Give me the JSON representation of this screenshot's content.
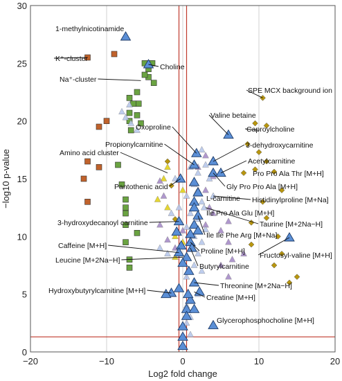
{
  "chart_data": {
    "type": "scatter",
    "title": "",
    "xlabel": "Log2 fold change",
    "ylabel": "−log10 p-value",
    "xlim": [
      -20,
      20
    ],
    "ylim": [
      0,
      30
    ],
    "xticks": [
      "−20",
      "−10",
      "0",
      "10",
      "20"
    ],
    "yticks": [
      "0",
      "5",
      "10",
      "15",
      "20",
      "25",
      "30"
    ],
    "grid": "vertical",
    "colors": {
      "squares": "#6aa341",
      "orange_squares": "#c0622b",
      "diamonds": "#b8960f",
      "triangles_light": "#b8c8ec",
      "triangles_purple": "#a78cc8",
      "triangles_labeled": "#5b8fd6",
      "triangles_yellow": "#e3d21c",
      "threshold_line": "#c0392b",
      "grid": "#d0d0d0"
    },
    "thresholds": {
      "x": [
        -0.5,
        0.5
      ],
      "y": 1.3
    },
    "series": [
      {
        "marker": "square",
        "color": "#6aa341",
        "points": [
          [
            -5,
            25
          ],
          [
            -4.5,
            24.5
          ],
          [
            -4,
            25
          ],
          [
            -4.5,
            23.8
          ],
          [
            -3.8,
            23.3
          ],
          [
            -5,
            24
          ],
          [
            -6,
            22.5
          ],
          [
            -5.8,
            21.5
          ],
          [
            -7,
            22
          ],
          [
            -6.5,
            21.5
          ],
          [
            -7,
            20.7
          ],
          [
            -6,
            20.5
          ],
          [
            -7,
            20
          ],
          [
            -5.5,
            19.8
          ],
          [
            -6.8,
            19.2
          ],
          [
            -7.5,
            13.2
          ],
          [
            -7.5,
            12.5
          ],
          [
            -7.5,
            12
          ],
          [
            -7.5,
            11
          ],
          [
            -6,
            10.3
          ],
          [
            -7.5,
            9.5
          ],
          [
            -8,
            14.5
          ],
          [
            -7,
            8
          ],
          [
            -7,
            7.3
          ],
          [
            -8.5,
            16.2
          ]
        ]
      },
      {
        "marker": "square",
        "color": "#c0622b",
        "points": [
          [
            -12.5,
            25.5
          ],
          [
            -9,
            25.8
          ],
          [
            -10,
            20
          ],
          [
            -11,
            19.5
          ],
          [
            -12.5,
            16.5
          ],
          [
            -11,
            16
          ],
          [
            -13,
            15
          ],
          [
            -12.5,
            13
          ]
        ]
      },
      {
        "marker": "diamond",
        "color": "#b8960f",
        "points": [
          [
            10.5,
            22
          ],
          [
            9.5,
            19.8
          ],
          [
            11,
            19.6
          ],
          [
            8.5,
            18
          ],
          [
            10,
            17.3
          ],
          [
            9.5,
            15.8
          ],
          [
            11,
            16.5
          ],
          [
            8,
            15.5
          ],
          [
            12,
            15.6
          ],
          [
            13,
            14
          ],
          [
            10.5,
            13
          ],
          [
            11,
            11.6
          ],
          [
            9,
            9.3
          ],
          [
            12.5,
            10
          ],
          [
            13,
            8.5
          ],
          [
            12,
            7.5
          ],
          [
            15,
            6.5
          ],
          [
            14,
            6
          ],
          [
            9,
            11.2
          ],
          [
            -1.5,
            14.4
          ],
          [
            -2,
            16.5
          ],
          [
            -1,
            11.5
          ]
        ]
      },
      {
        "marker": "triangle",
        "color": "#e3d21c",
        "points": [
          [
            -2,
            16
          ],
          [
            -2.5,
            15
          ],
          [
            -3.3,
            13.2
          ],
          [
            -2,
            12.5
          ],
          [
            0,
            14
          ],
          [
            -1,
            10
          ],
          [
            0,
            9.5
          ],
          [
            -1,
            8.2
          ]
        ]
      },
      {
        "marker": "triangle",
        "color": "#a78cc8",
        "points": [
          [
            -3,
            14.8
          ],
          [
            -2.5,
            13.5
          ],
          [
            -3,
            11
          ],
          [
            -2,
            9.7
          ],
          [
            -1,
            9
          ],
          [
            0,
            10.5
          ],
          [
            3,
            17
          ],
          [
            4,
            15.2
          ],
          [
            3,
            14
          ],
          [
            3.5,
            12.5
          ],
          [
            3,
            11
          ],
          [
            6,
            11.3
          ],
          [
            4,
            12
          ],
          [
            6,
            9.5
          ],
          [
            8,
            8.5
          ],
          [
            6.5,
            8
          ],
          [
            5,
            7.5
          ],
          [
            2,
            14
          ],
          [
            2,
            16
          ],
          [
            5,
            10.5
          ],
          [
            6,
            6.5
          ]
        ]
      },
      {
        "marker": "triangle",
        "color": "#b8c8ec",
        "points": [
          [
            -8,
            20.8
          ],
          [
            -7.5,
            20.3
          ],
          [
            -7,
            21.4
          ],
          [
            -6.8,
            19.8
          ],
          [
            -6,
            19.2
          ],
          [
            -1,
            15
          ],
          [
            1,
            16
          ],
          [
            2,
            15.5
          ],
          [
            1.5,
            14.5
          ],
          [
            0.5,
            13.5
          ],
          [
            2.5,
            13
          ],
          [
            1,
            12
          ],
          [
            2,
            11.5
          ],
          [
            0.5,
            10.8
          ],
          [
            1.5,
            10
          ],
          [
            2.5,
            9.5
          ],
          [
            1,
            9
          ],
          [
            2,
            8.5
          ],
          [
            1.5,
            7.5
          ],
          [
            2.5,
            7
          ],
          [
            0.5,
            6.5
          ],
          [
            1.5,
            6
          ],
          [
            2,
            5
          ],
          [
            1,
            4.5
          ],
          [
            0.5,
            4
          ],
          [
            1,
            3
          ],
          [
            0.5,
            2.5
          ],
          [
            1,
            1.5
          ],
          [
            2.5,
            17.5
          ],
          [
            3,
            16.2
          ],
          [
            3.5,
            15
          ],
          [
            1.8,
            13.8
          ],
          [
            2.8,
            12.5
          ],
          [
            3,
            10.6
          ],
          [
            -0.5,
            12.5
          ],
          [
            -1.5,
            12
          ],
          [
            -0.5,
            11.2
          ],
          [
            4,
            13.5
          ],
          [
            -2,
            8.5
          ],
          [
            -3,
            9
          ]
        ]
      },
      {
        "marker": "triangle_large",
        "color": "#5b8fd6",
        "points": [
          [
            -7.5,
            27.3
          ],
          [
            -4.5,
            24.9
          ],
          [
            1.8,
            17.2
          ],
          [
            1.5,
            16.2
          ],
          [
            6,
            18.8
          ],
          [
            4,
            16.5
          ],
          [
            4,
            15.5
          ],
          [
            5,
            15.5
          ],
          [
            1.5,
            14.7
          ],
          [
            2,
            13.8
          ],
          [
            1.5,
            13
          ],
          [
            2,
            11.8
          ],
          [
            1.5,
            12.5
          ],
          [
            1.5,
            11
          ],
          [
            2,
            10.5
          ],
          [
            1,
            10.2
          ],
          [
            1,
            9.5
          ],
          [
            1.2,
            9
          ],
          [
            -0.2,
            9.2
          ],
          [
            -0.5,
            8.6
          ],
          [
            0.5,
            8.2
          ],
          [
            0,
            7.7
          ],
          [
            0.8,
            7
          ],
          [
            1.5,
            6
          ],
          [
            2.2,
            5.2
          ],
          [
            1,
            4.5
          ],
          [
            0.5,
            3.7
          ],
          [
            0.5,
            3.1
          ],
          [
            0,
            2.2
          ],
          [
            0,
            1.3
          ],
          [
            0,
            0.5
          ],
          [
            4,
            2.3
          ],
          [
            -1.5,
            5.1
          ],
          [
            -2.2,
            5
          ],
          [
            1.5,
            3.7
          ],
          [
            -0.5,
            5.5
          ],
          [
            0.7,
            5
          ],
          [
            -0.8,
            10.4
          ],
          [
            -0.5,
            11.3
          ],
          [
            -0.3,
            15
          ],
          [
            14,
            9.9
          ]
        ]
      }
    ],
    "annotations": [
      {
        "text": "1-methylnicotinamide",
        "x": -7.5,
        "y": 27.3
      },
      {
        "text": "K⁺-cluster",
        "x": -12.5,
        "y": 25.5
      },
      {
        "text": "Na⁺-cluster",
        "x": -5.5,
        "y": 23.5
      },
      {
        "text": "Choline",
        "x": -4.5,
        "y": 24.9
      },
      {
        "text": "SPE MCX background ion",
        "x": 10.5,
        "y": 22
      },
      {
        "text": "Valine betaine",
        "x": 6,
        "y": 18.8
      },
      {
        "text": "Caproylcholine",
        "x": 10,
        "y": 19.2
      },
      {
        "text": "Oxoproline",
        "x": 1.8,
        "y": 17.2
      },
      {
        "text": "Propionylcarnitine",
        "x": 1.5,
        "y": 16.2
      },
      {
        "text": "3-dehydroxycarnitine",
        "x": 4,
        "y": 16.5
      },
      {
        "text": "Amino acid cluster",
        "x": -2,
        "y": 15.5
      },
      {
        "text": "Acetylcarnitine",
        "x": 5,
        "y": 15.5
      },
      {
        "text": "Pro Pro Ala Thr [M+H]",
        "x": 8,
        "y": 15.3
      },
      {
        "text": "Gly Pro Pro Ala [M+H]",
        "x": 4,
        "y": 15.5
      },
      {
        "text": "Pantothenic acid",
        "x": -0.3,
        "y": 15
      },
      {
        "text": "L-carnitine",
        "x": 2,
        "y": 13.8
      },
      {
        "text": "Histidinylproline [M+Na]",
        "x": 4,
        "y": 13.5
      },
      {
        "text": "Ile Pro Ala Glu [M+H]",
        "x": 2,
        "y": 12.5
      },
      {
        "text": "3-hydroxydecanoyl carnitine",
        "x": -0.5,
        "y": 11.3
      },
      {
        "text": "Taurine [M+2Na−H]",
        "x": 3,
        "y": 12.5
      },
      {
        "text": "Ile Ile Phe Arg [M+Na]",
        "x": 2,
        "y": 11.8
      },
      {
        "text": "Fructosyl-valine [M+H]",
        "x": 14,
        "y": 9.9
      },
      {
        "text": "Caffeine [M+H]",
        "x": -0.5,
        "y": 8.6
      },
      {
        "text": "Proline [M+H]",
        "x": 1,
        "y": 9.5
      },
      {
        "text": "Leucine [M+2Na−H]",
        "x": 0,
        "y": 8.2
      },
      {
        "text": "Butyrylcarnitine",
        "x": 1,
        "y": 9
      },
      {
        "text": "Hydroxybutyrylcarnitine [M+H]",
        "x": -1.5,
        "y": 5.1
      },
      {
        "text": "Threonine [M+2Na−H]",
        "x": 1.5,
        "y": 6
      },
      {
        "text": "Creatine [M+H]",
        "x": 1.5,
        "y": 5.2
      },
      {
        "text": "Glycerophosphocholine [M+H]",
        "x": 4,
        "y": 2.3
      }
    ]
  }
}
